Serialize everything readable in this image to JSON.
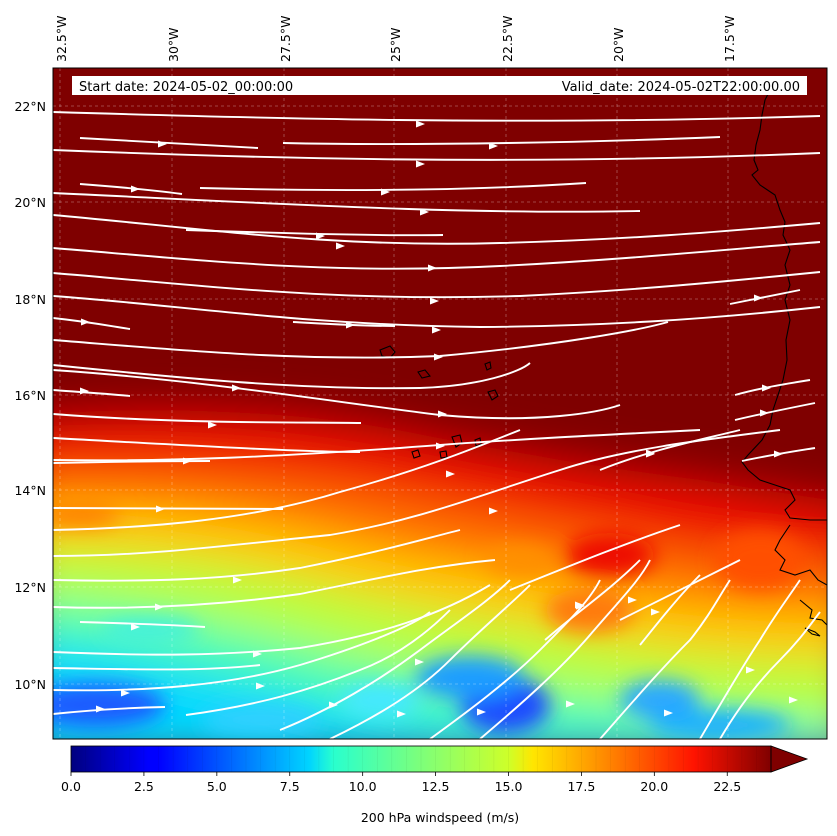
{
  "header": {
    "start_date": "Start date: 2024-05-02_00:00:00",
    "valid_date": "Valid_date: 2024-05-02T22:00:00.00"
  },
  "longitude_ticks": [
    "32.5°W",
    "30°W",
    "27.5°W",
    "25°W",
    "22.5°W",
    "20°W",
    "17.5°W"
  ],
  "latitude_ticks": [
    "22°N",
    "20°N",
    "18°N",
    "16°N",
    "14°N",
    "12°N",
    "10°N"
  ],
  "colorbar": {
    "label": "200 hPa windspeed (m/s)",
    "ticks": [
      "0.0",
      "2.5",
      "5.0",
      "7.5",
      "10.0",
      "12.5",
      "15.0",
      "17.5",
      "20.0",
      "22.5"
    ],
    "vmin": 0,
    "vmax": 24,
    "extend": "max",
    "colormap": "jet"
  },
  "colors": {
    "max_speed": "#7f0000",
    "streamline": "#ffffff",
    "coastline": "#000000"
  }
}
